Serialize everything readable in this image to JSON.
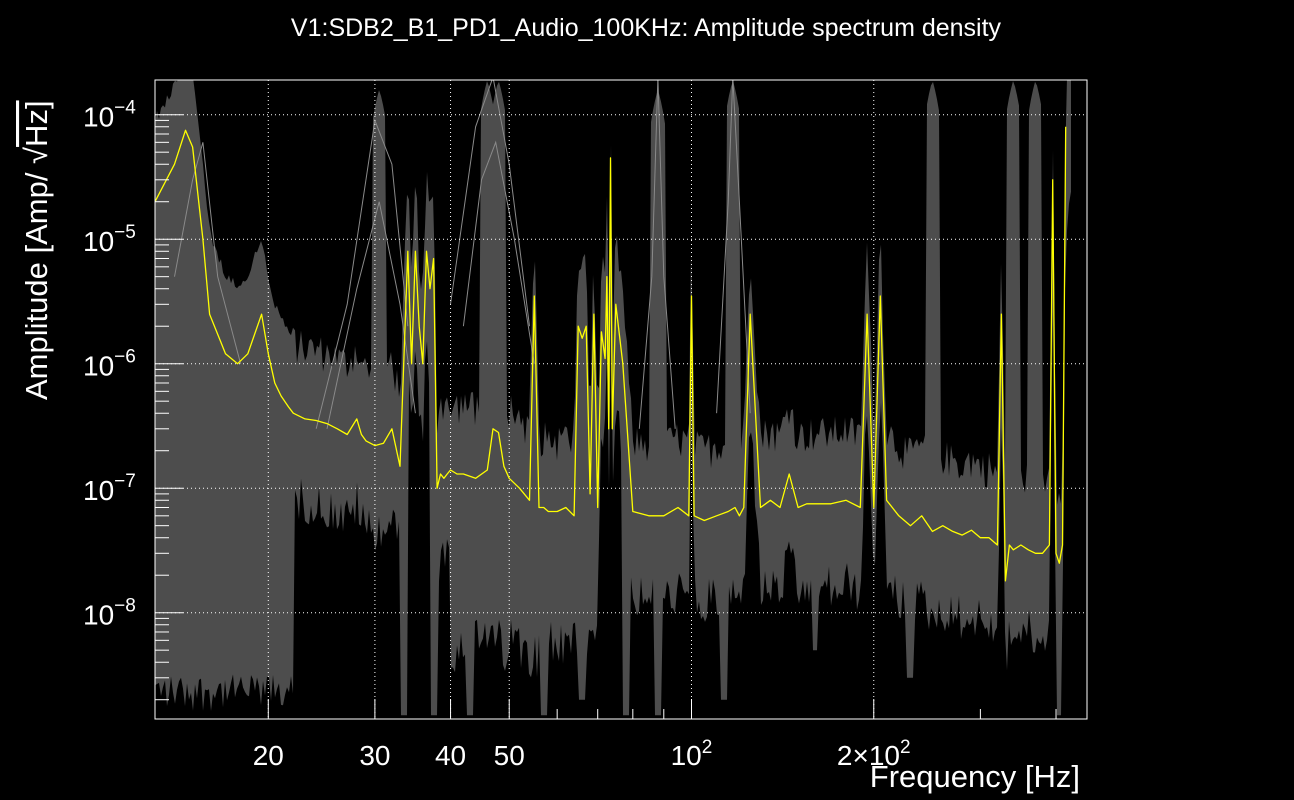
{
  "chart_data": {
    "type": "line",
    "title": "V1:SDB2_B1_PD1_Audio_100KHz: Amplitude spectrum density",
    "xlabel": "Frequency [Hz]",
    "ylabel": "Amplitude [Amp/ √Hz]",
    "ylabel_parts": {
      "main": "Amplitude [Amp/ ",
      "root": "√",
      "unit": "Hz]"
    },
    "xscale": "log",
    "yscale": "log",
    "xlim": [
      13,
      450
    ],
    "ylim": [
      1.4e-09,
      0.00019
    ],
    "grid": true,
    "x_ticks": [
      {
        "value": 20,
        "label": "20"
      },
      {
        "value": 30,
        "label": "30"
      },
      {
        "value": 40,
        "label": "40"
      },
      {
        "value": 50,
        "label": "50"
      },
      {
        "value": 100,
        "label": "10",
        "exp": "2"
      },
      {
        "value": 200,
        "label": "2×10",
        "exp": "2"
      }
    ],
    "y_ticks": [
      {
        "value": 1e-08,
        "label": "10",
        "exp": "−8"
      },
      {
        "value": 1e-07,
        "label": "10",
        "exp": "−7"
      },
      {
        "value": 1e-06,
        "label": "10",
        "exp": "−6"
      },
      {
        "value": 1e-05,
        "label": "10",
        "exp": "−5"
      },
      {
        "value": 0.0001,
        "label": "10",
        "exp": "−4"
      }
    ],
    "colors": {
      "background": "#000000",
      "reference_band": "#4d4d4d",
      "reference_lines": "#8a8a8a",
      "series": "#ffff00",
      "axes": "#ffffff",
      "grid": "#ffffff"
    },
    "series": [
      {
        "name": "SDB2_B1_PD1_Audio_100KHz",
        "color": "#ffff00",
        "x": [
          13,
          14,
          14.6,
          15,
          15.6,
          16,
          16.6,
          17,
          17.8,
          18.5,
          19.5,
          20,
          20.5,
          21,
          21.6,
          22,
          23,
          24,
          25,
          26,
          27,
          28,
          28.5,
          29,
          30,
          31,
          32,
          33,
          34,
          34.5,
          35,
          35.5,
          36,
          36.5,
          37,
          37.5,
          38,
          38.5,
          39,
          39.5,
          40,
          41,
          42,
          44,
          46,
          47,
          48,
          49,
          50,
          52,
          54,
          55,
          56,
          57,
          58,
          60,
          62,
          64,
          65,
          66,
          67,
          68,
          69,
          70,
          71,
          72,
          72.5,
          73,
          73.5,
          74,
          75,
          77,
          80,
          85,
          90,
          95,
          99,
          100,
          101,
          105,
          110,
          115,
          118,
          120,
          122,
          125,
          130,
          135,
          140,
          145,
          150,
          155,
          160,
          170,
          180,
          190,
          195,
          200,
          205,
          210,
          220,
          230,
          240,
          250,
          260,
          270,
          280,
          290,
          300,
          310,
          320,
          325,
          330,
          335,
          340,
          350,
          360,
          370,
          380,
          390,
          395,
          400,
          405,
          410,
          415
        ],
        "values": [
          2e-05,
          4e-05,
          7.5e-05,
          5.5e-05,
          1e-05,
          2.5e-06,
          1.6e-06,
          1.2e-06,
          1e-06,
          1.2e-06,
          2.5e-06,
          1.2e-06,
          7e-07,
          5.5e-07,
          4.5e-07,
          4e-07,
          3.6e-07,
          3.5e-07,
          3.3e-07,
          3e-07,
          2.7e-07,
          3.6e-07,
          2.7e-07,
          2.4e-07,
          2.2e-07,
          2.3e-07,
          3e-07,
          1.5e-07,
          8e-06,
          1e-06,
          8e-06,
          2e-06,
          1e-06,
          8e-06,
          4e-06,
          7e-06,
          1e-07,
          1.3e-07,
          1.2e-07,
          1.3e-07,
          1.4e-07,
          1.3e-07,
          1.3e-07,
          1.2e-07,
          1.4e-07,
          3e-07,
          2.8e-07,
          1.5e-07,
          1.2e-07,
          1e-07,
          8e-08,
          3.5e-06,
          7e-08,
          7e-08,
          6.5e-08,
          6.5e-08,
          7e-08,
          6e-08,
          2e-06,
          1.6e-06,
          2e-06,
          9e-08,
          2.5e-06,
          7e-08,
          1.8e-06,
          1.1e-06,
          5e-06,
          3e-07,
          4.5e-05,
          3e-07,
          3e-06,
          1e-06,
          6.5e-08,
          6e-08,
          6e-08,
          7e-08,
          6e-08,
          3.5e-06,
          6e-08,
          5.5e-08,
          6e-08,
          6.5e-08,
          7e-08,
          6e-08,
          7e-08,
          2.5e-06,
          7e-08,
          8e-08,
          7e-08,
          1.3e-07,
          7e-08,
          7.5e-08,
          7.5e-08,
          7.5e-08,
          8e-08,
          7e-08,
          2.5e-06,
          7e-08,
          3.5e-06,
          8e-08,
          6e-08,
          5e-08,
          6e-08,
          4.5e-08,
          5e-08,
          4.5e-08,
          4.2e-08,
          4.6e-08,
          4e-08,
          4e-08,
          3.5e-08,
          2.5e-06,
          1.8e-08,
          3.5e-08,
          3.2e-08,
          3.5e-08,
          3.2e-08,
          3e-08,
          3e-08,
          3.5e-08,
          3e-05,
          3e-08,
          2.5e-08,
          3.5e-08,
          8e-05
        ]
      }
    ]
  }
}
